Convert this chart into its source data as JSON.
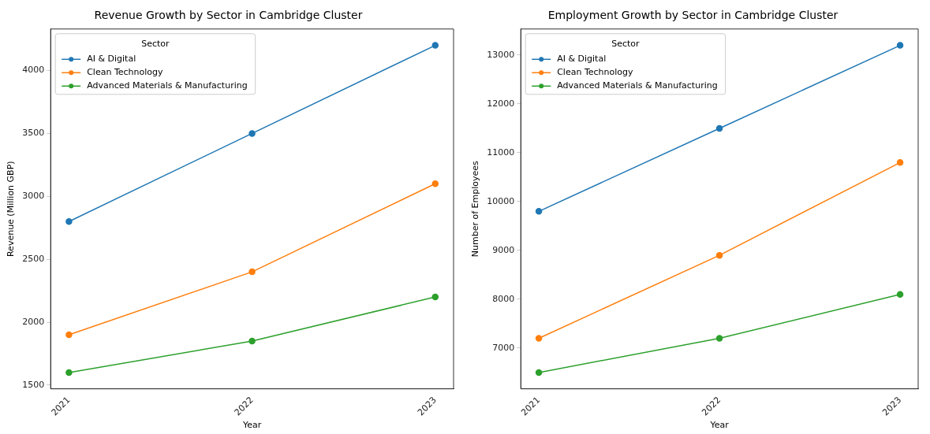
{
  "chart_data": [
    {
      "type": "line",
      "title": "Revenue Growth by Sector in Cambridge Cluster",
      "xlabel": "Year",
      "ylabel": "Revenue (Million GBP)",
      "legend_title": "Sector",
      "legend": "top left",
      "marker": "circle",
      "line_style": "solid",
      "grid": false,
      "x": [
        2021,
        2022,
        2023
      ],
      "xlim": [
        2020.9,
        2023.1
      ],
      "xticks": [
        2021,
        2022,
        2023
      ],
      "ylim": [
        1470,
        4330
      ],
      "yticks": [
        1500,
        2000,
        2500,
        3000,
        3500,
        4000
      ],
      "series": [
        {
          "name": "AI & Digital",
          "color": "#1f77b4",
          "values": [
            2800,
            3500,
            4200
          ]
        },
        {
          "name": "Clean Technology",
          "color": "#ff7f0e",
          "values": [
            1900,
            2400,
            3100
          ]
        },
        {
          "name": "Advanced Materials & Manufacturing",
          "color": "#2ca02c",
          "values": [
            1600,
            1850,
            2200
          ]
        }
      ]
    },
    {
      "type": "line",
      "title": "Employment Growth by Sector in Cambridge Cluster",
      "xlabel": "Year",
      "ylabel": "Number of Employees",
      "legend_title": "Sector",
      "legend": "top left",
      "marker": "circle",
      "line_style": "solid",
      "grid": false,
      "x": [
        2021,
        2022,
        2023
      ],
      "xlim": [
        2020.9,
        2023.1
      ],
      "xticks": [
        2021,
        2022,
        2023
      ],
      "ylim": [
        6165,
        13535
      ],
      "yticks": [
        7000,
        8000,
        9000,
        10000,
        11000,
        12000,
        13000
      ],
      "series": [
        {
          "name": "AI & Digital",
          "color": "#1f77b4",
          "values": [
            9800,
            11500,
            13200
          ]
        },
        {
          "name": "Clean Technology",
          "color": "#ff7f0e",
          "values": [
            7200,
            8900,
            10800
          ]
        },
        {
          "name": "Advanced Materials & Manufacturing",
          "color": "#2ca02c",
          "values": [
            6500,
            7200,
            8100
          ]
        }
      ]
    }
  ]
}
